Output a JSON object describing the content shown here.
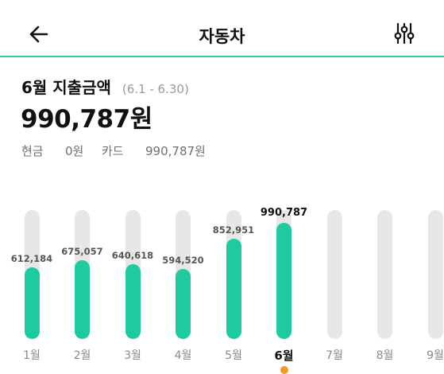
{
  "header": {
    "title": "자동차",
    "back_icon": "arrow-left-icon",
    "filter_icon": "sliders-icon",
    "accent": "#2ec9a6"
  },
  "summary": {
    "period_title": "6월 지출금액",
    "period_range": "(6.1 - 6.30)",
    "total": "990,787원",
    "cash_label": "현금",
    "cash_value": "0원",
    "card_label": "카드",
    "card_value": "990,787원"
  },
  "chart_data": {
    "type": "bar",
    "categories": [
      "1월",
      "2월",
      "3월",
      "4월",
      "5월",
      "6월",
      "7월",
      "8월",
      "9월"
    ],
    "values": [
      612184,
      675057,
      640618,
      594520,
      852951,
      990787,
      null,
      null,
      null
    ],
    "value_labels": [
      "612,184",
      "675,057",
      "640,618",
      "594,520",
      "852,951",
      "990,787",
      "",
      "",
      ""
    ],
    "selected_index": 5,
    "bar_color": "#1ecaa0",
    "track_color": "#e7e7e7",
    "selected_marker_color": "#f39a2b"
  }
}
